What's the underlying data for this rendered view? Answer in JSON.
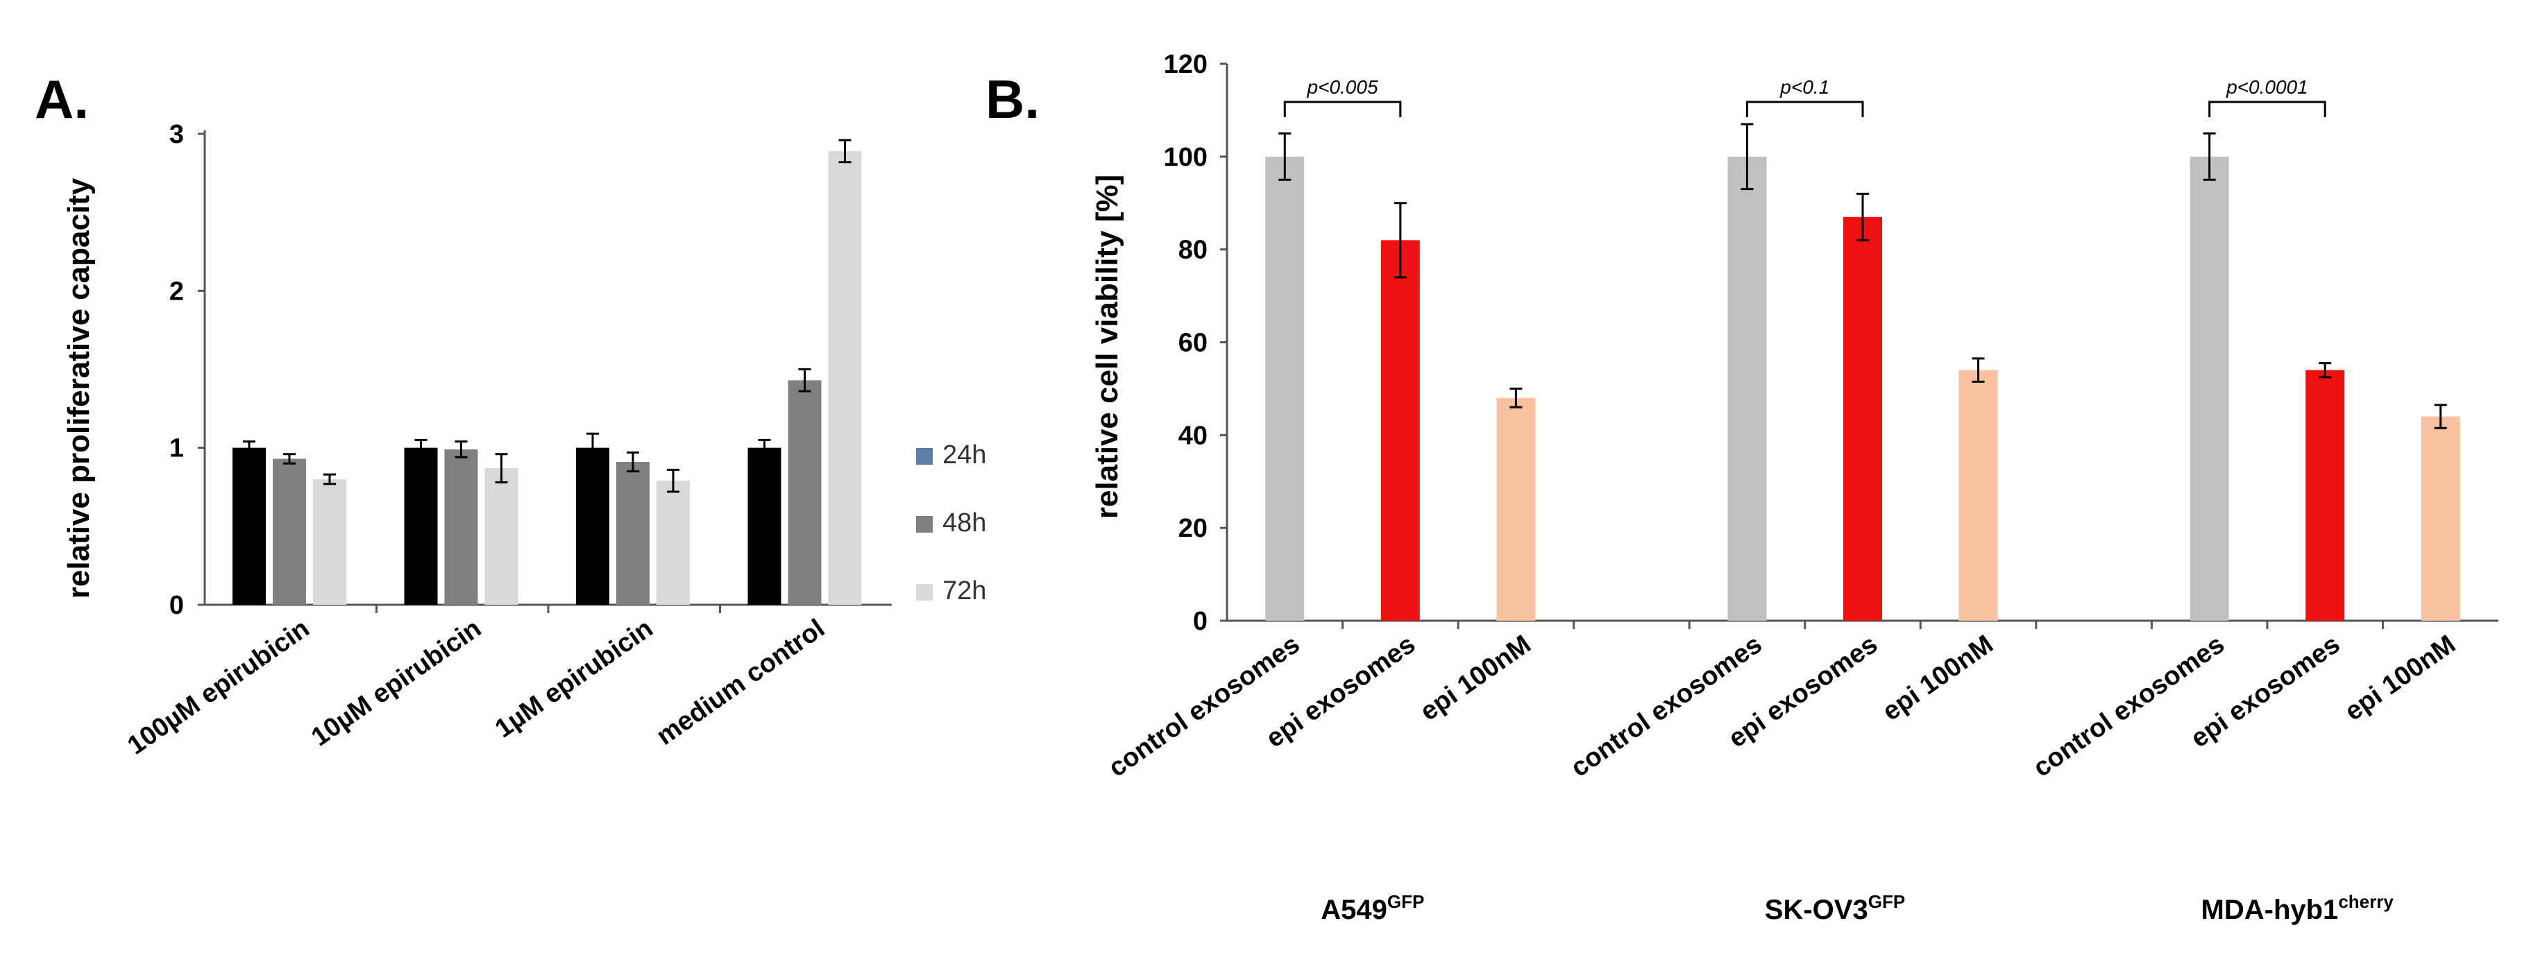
{
  "chart_data": [
    {
      "panel": "A.",
      "type": "bar",
      "ylabel": "relative proliferative capacity",
      "ylim": [
        0,
        3
      ],
      "yticks": [
        "0",
        "1",
        "2",
        "3"
      ],
      "categories": [
        "100µM epirubicin",
        "10µM epirubicin",
        "1µM epirubicin",
        "medium control"
      ],
      "series": [
        {
          "name": "24h",
          "color": "#000000",
          "legend_color": "#5b7fa6",
          "values": [
            1.0,
            1.0,
            1.0,
            1.0
          ],
          "errors": [
            0.04,
            0.05,
            0.09,
            0.05
          ]
        },
        {
          "name": "48h",
          "color": "#808080",
          "legend_color": "#808080",
          "values": [
            0.93,
            0.99,
            0.91,
            1.43
          ],
          "errors": [
            0.03,
            0.05,
            0.06,
            0.07
          ]
        },
        {
          "name": "72h",
          "color": "#d9d9d9",
          "legend_color": "#d9d9d9",
          "values": [
            0.8,
            0.87,
            0.79,
            2.89
          ],
          "errors": [
            0.03,
            0.09,
            0.07,
            0.07
          ]
        }
      ],
      "legend_position": "right",
      "grid": false
    },
    {
      "panel": "B.",
      "type": "bar",
      "ylabel": "relative cell viability  [%]",
      "ylim": [
        0,
        120
      ],
      "yticks": [
        "0",
        "20",
        "40",
        "60",
        "80",
        "100",
        "120"
      ],
      "categories": [
        "control exosomes",
        "epi exosomes",
        "epi 100nM",
        "",
        "control exosomes",
        "epi exosomes",
        "epi 100nM",
        "",
        "control exosomes",
        "epi exosomes",
        "epi 100nM"
      ],
      "values": [
        100,
        82,
        48,
        null,
        100,
        87,
        54,
        null,
        100,
        54,
        44
      ],
      "errors": [
        5,
        8,
        2,
        null,
        7,
        5,
        2.5,
        null,
        5,
        1.5,
        2.5
      ],
      "colors": [
        "#c0c0c0",
        "#ee1111",
        "#f8c2a0",
        null,
        "#c0c0c0",
        "#ee1111",
        "#f8c2a0",
        null,
        "#c0c0c0",
        "#ee1111",
        "#f8c2a0"
      ],
      "groups": [
        {
          "name": "A549",
          "sup": "GFP"
        },
        {
          "name": "SK-OV3",
          "sup": "GFP"
        },
        {
          "name": "MDA-hyb1",
          "sup": "cherry"
        }
      ],
      "annotations": [
        {
          "text": "p<0.005",
          "from_index": 0,
          "to_index": 1
        },
        {
          "text": "p<0.1",
          "from_index": 4,
          "to_index": 5
        },
        {
          "text": "p<0.0001",
          "from_index": 8,
          "to_index": 9
        }
      ],
      "grid": false
    }
  ]
}
